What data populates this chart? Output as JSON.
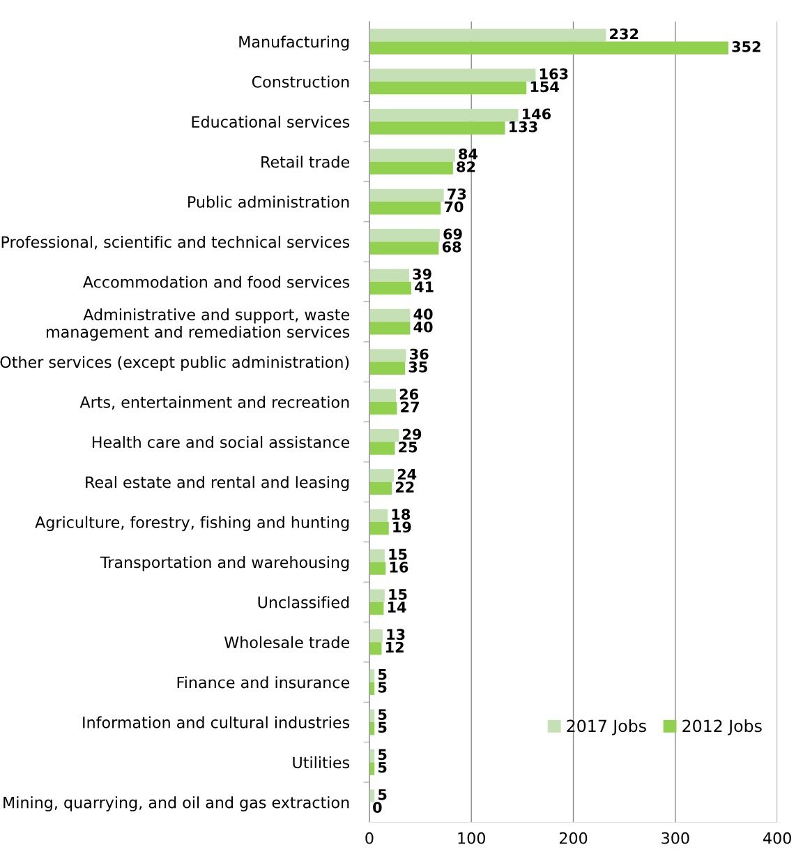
{
  "chart_data": {
    "type": "bar",
    "orientation": "horizontal",
    "categories": [
      "Manufacturing",
      "Construction",
      "Educational services",
      "Retail trade",
      "Public administration",
      "Professional, scientific and technical services",
      "Accommodation and food services",
      "Administrative and support, waste\nmanagement and remediation services",
      "Other services (except public administration)",
      "Arts, entertainment and recreation",
      "Health care and social assistance",
      "Real estate and rental and leasing",
      "Agriculture, forestry, fishing and hunting",
      "Transportation and warehousing",
      "Unclassified",
      "Wholesale trade",
      "Finance and insurance",
      "Information and cultural industries",
      "Utilities",
      "Mining, quarrying, and oil and gas extraction"
    ],
    "series": [
      {
        "name": "2017 Jobs",
        "color": "#c5e0b4",
        "values": [
          232,
          163,
          146,
          84,
          73,
          69,
          39,
          40,
          36,
          26,
          29,
          24,
          18,
          15,
          15,
          13,
          5,
          5,
          5,
          5
        ]
      },
      {
        "name": "2012 Jobs",
        "color": "#92d050",
        "values": [
          352,
          154,
          133,
          82,
          70,
          68,
          41,
          40,
          35,
          27,
          25,
          22,
          19,
          16,
          14,
          12,
          5,
          5,
          5,
          0
        ]
      }
    ],
    "xlim": [
      0,
      400
    ],
    "xticks": [
      0,
      100,
      200,
      300,
      400
    ],
    "grid": "x",
    "legend": "bottom right",
    "data_labels": true
  }
}
